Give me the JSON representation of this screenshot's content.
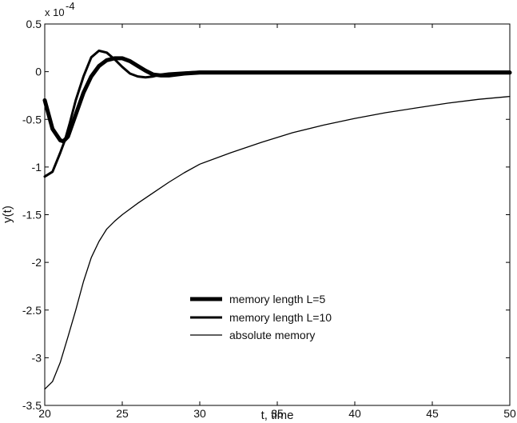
{
  "chart_data": {
    "type": "line",
    "title": "",
    "xlabel": "t, time",
    "ylabel": "y(t)",
    "y_multiplier_label": "x 10",
    "y_multiplier_exponent": "-4",
    "xlim": [
      20,
      50
    ],
    "ylim": [
      -3.5,
      0.5
    ],
    "y_scale_factor": 0.0001,
    "x_ticks": [
      20,
      25,
      30,
      35,
      40,
      45,
      50
    ],
    "x_tick_labels": [
      "20",
      "25",
      "30",
      "35",
      "40",
      "45",
      "50"
    ],
    "y_ticks": [
      0.5,
      0,
      -0.5,
      -1,
      -1.5,
      -2,
      -2.5,
      -3,
      -3.5
    ],
    "y_tick_labels": [
      "0.5",
      "0",
      "-0.5",
      "-1",
      "-1.5",
      "-2",
      "-2.5",
      "-3",
      "-3.5"
    ],
    "grid": false,
    "legend_position": "lower-center",
    "series": [
      {
        "name": "memory length L=5",
        "style": "thick",
        "color": "#000000",
        "x": [
          20,
          20.5,
          21,
          21.2,
          21.5,
          22,
          22.5,
          23,
          23.5,
          24,
          24.5,
          25,
          25.5,
          26,
          26.5,
          27,
          27.5,
          28,
          29,
          30,
          35,
          40,
          45,
          50
        ],
        "y": [
          -0.3,
          -0.6,
          -0.72,
          -0.73,
          -0.68,
          -0.45,
          -0.22,
          -0.05,
          0.06,
          0.12,
          0.14,
          0.14,
          0.11,
          0.06,
          0.01,
          -0.03,
          -0.04,
          -0.04,
          -0.02,
          -0.01,
          -0.01,
          -0.01,
          -0.01,
          -0.01
        ]
      },
      {
        "name": "memory length L=10",
        "style": "medium",
        "color": "#000000",
        "x": [
          20,
          20.5,
          21,
          21.3,
          21.6,
          22,
          22.5,
          23,
          23.5,
          24,
          24.5,
          25,
          25.5,
          26,
          26.5,
          27,
          27.5,
          28,
          29,
          30,
          35,
          40,
          45,
          50
        ],
        "y": [
          -1.1,
          -1.05,
          -0.85,
          -0.72,
          -0.55,
          -0.3,
          -0.05,
          0.15,
          0.22,
          0.2,
          0.13,
          0.05,
          -0.02,
          -0.05,
          -0.06,
          -0.05,
          -0.03,
          -0.02,
          -0.01,
          0,
          0,
          0,
          0,
          0
        ]
      },
      {
        "name": "absolute memory",
        "style": "thin",
        "color": "#000000",
        "x": [
          20,
          20.5,
          21,
          21.5,
          22,
          22.5,
          23,
          23.5,
          24,
          24.5,
          25,
          26,
          27,
          28,
          29,
          30,
          32,
          34,
          36,
          38,
          40,
          42,
          44,
          46,
          48,
          50
        ],
        "y": [
          -3.33,
          -3.25,
          -3.05,
          -2.78,
          -2.5,
          -2.2,
          -1.95,
          -1.78,
          -1.65,
          -1.57,
          -1.5,
          -1.38,
          -1.27,
          -1.16,
          -1.06,
          -0.97,
          -0.85,
          -0.74,
          -0.64,
          -0.56,
          -0.49,
          -0.43,
          -0.38,
          -0.33,
          -0.29,
          -0.26
        ]
      }
    ]
  }
}
